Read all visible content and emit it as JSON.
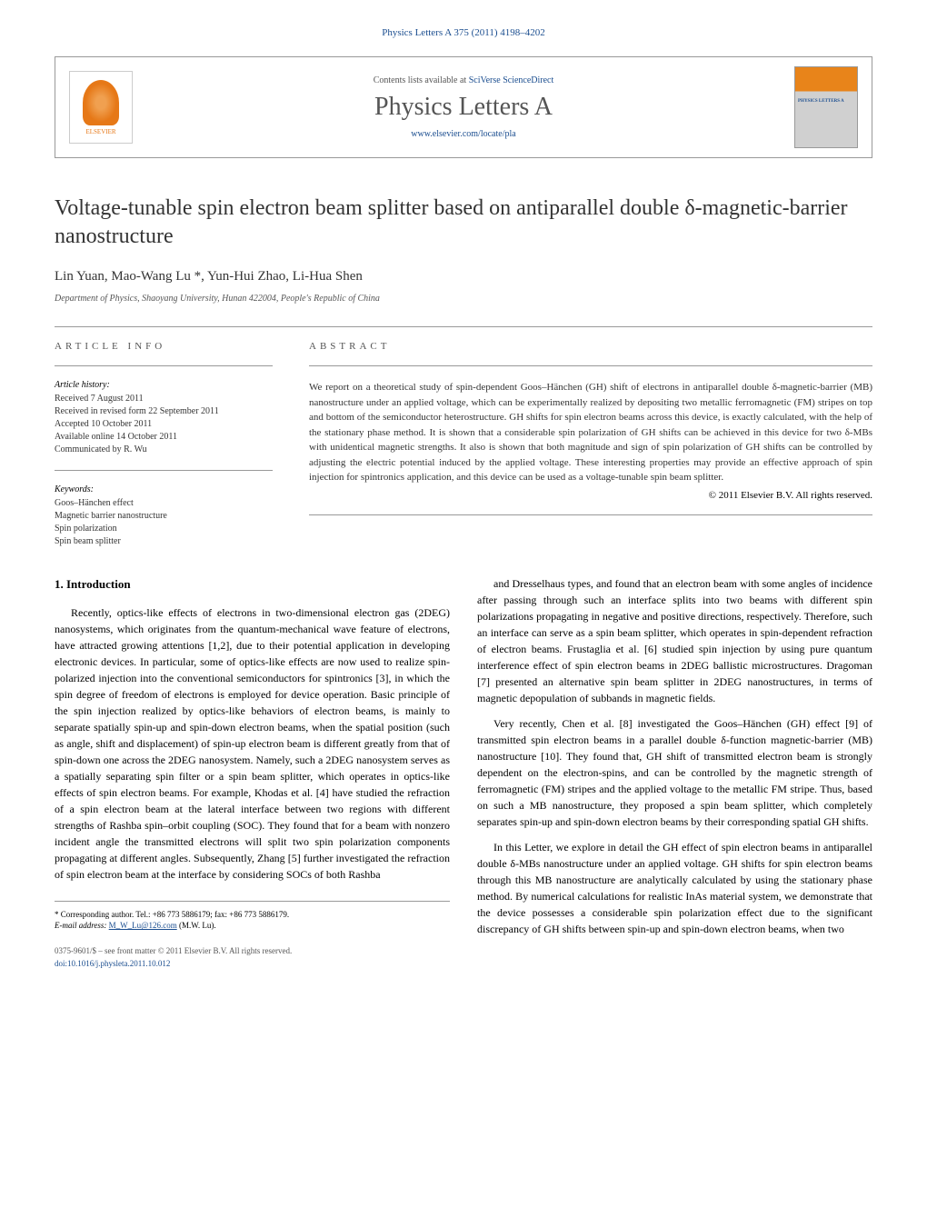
{
  "journal_ref": "Physics Letters A 375 (2011) 4198–4202",
  "header": {
    "contents_prefix": "Contents lists available at ",
    "contents_link": "SciVerse ScienceDirect",
    "journal_name": "Physics Letters A",
    "journal_url": "www.elsevier.com/locate/pla",
    "publisher": "ELSEVIER"
  },
  "article": {
    "title": "Voltage-tunable spin electron beam splitter based on antiparallel double δ-magnetic-barrier nanostructure",
    "authors": "Lin Yuan, Mao-Wang Lu *, Yun-Hui Zhao, Li-Hua Shen",
    "affiliation": "Department of Physics, Shaoyang University, Hunan 422004, People's Republic of China"
  },
  "info": {
    "heading": "ARTICLE INFO",
    "history_label": "Article history:",
    "history": "Received 7 August 2011\nReceived in revised form 22 September 2011\nAccepted 10 October 2011\nAvailable online 14 October 2011\nCommunicated by R. Wu",
    "keywords_label": "Keywords:",
    "keywords": "Goos–Hänchen effect\nMagnetic barrier nanostructure\nSpin polarization\nSpin beam splitter"
  },
  "abstract": {
    "heading": "ABSTRACT",
    "text": "We report on a theoretical study of spin-dependent Goos–Hänchen (GH) shift of electrons in antiparallel double δ-magnetic-barrier (MB) nanostructure under an applied voltage, which can be experimentally realized by depositing two metallic ferromagnetic (FM) stripes on top and bottom of the semiconductor heterostructure. GH shifts for spin electron beams across this device, is exactly calculated, with the help of the stationary phase method. It is shown that a considerable spin polarization of GH shifts can be achieved in this device for two δ-MBs with unidentical magnetic strengths. It also is shown that both magnitude and sign of spin polarization of GH shifts can be controlled by adjusting the electric potential induced by the applied voltage. These interesting properties may provide an effective approach of spin injection for spintronics application, and this device can be used as a voltage-tunable spin beam splitter.",
    "copyright": "© 2011 Elsevier B.V. All rights reserved."
  },
  "body": {
    "section_num": "1.",
    "section_title": "Introduction",
    "col1_p1": "Recently, optics-like effects of electrons in two-dimensional electron gas (2DEG) nanosystems, which originates from the quantum-mechanical wave feature of electrons, have attracted growing attentions [1,2], due to their potential application in developing electronic devices. In particular, some of optics-like effects are now used to realize spin-polarized injection into the conventional semiconductors for spintronics [3], in which the spin degree of freedom of electrons is employed for device operation. Basic principle of the spin injection realized by optics-like behaviors of electron beams, is mainly to separate spatially spin-up and spin-down electron beams, when the spatial position (such as angle, shift and displacement) of spin-up electron beam is different greatly from that of spin-down one across the 2DEG nanosystem. Namely, such a 2DEG nanosystem serves as a spatially separating spin filter or a spin beam splitter, which operates in optics-like effects of spin electron beams. For example, Khodas et al. [4] have studied the refraction of a spin electron beam at the lateral interface between two regions with different strengths of Rashba spin–orbit coupling (SOC). They found that for a beam with nonzero incident angle the transmitted electrons will split two spin polarization components propagating at different angles. Subsequently, Zhang [5] further investigated the refraction of spin electron beam at the interface by considering SOCs of both Rashba",
    "col2_p1": "and Dresselhaus types, and found that an electron beam with some angles of incidence after passing through such an interface splits into two beams with different spin polarizations propagating in negative and positive directions, respectively. Therefore, such an interface can serve as a spin beam splitter, which operates in spin-dependent refraction of electron beams. Frustaglia et al. [6] studied spin injection by using pure quantum interference effect of spin electron beams in 2DEG ballistic microstructures. Dragoman [7] presented an alternative spin beam splitter in 2DEG nanostructures, in terms of magnetic depopulation of subbands in magnetic fields.",
    "col2_p2": "Very recently, Chen et al. [8] investigated the Goos–Hänchen (GH) effect [9] of transmitted spin electron beams in a parallel double δ-function magnetic-barrier (MB) nanostructure [10]. They found that, GH shift of transmitted electron beam is strongly dependent on the electron-spins, and can be controlled by the magnetic strength of ferromagnetic (FM) stripes and the applied voltage to the metallic FM stripe. Thus, based on such a MB nanostructure, they proposed a spin beam splitter, which completely separates spin-up and spin-down electron beams by their corresponding spatial GH shifts.",
    "col2_p3": "In this Letter, we explore in detail the GH effect of spin electron beams in antiparallel double δ-MBs nanostructure under an applied voltage. GH shifts for spin electron beams through this MB nanostructure are analytically calculated by using the stationary phase method. By numerical calculations for realistic InAs material system, we demonstrate that the device possesses a considerable spin polarization effect due to the significant discrepancy of GH shifts between spin-up and spin-down electron beams, when two"
  },
  "footer": {
    "corresponding": "* Corresponding author. Tel.: +86 773 5886179; fax: +86 773 5886179.",
    "email_label": "E-mail address: ",
    "email": "M_W_Lu@126.com",
    "email_suffix": " (M.W. Lu).",
    "copyright_line": "0375-9601/$ – see front matter © 2011 Elsevier B.V. All rights reserved.",
    "doi": "doi:10.1016/j.physleta.2011.10.012"
  }
}
